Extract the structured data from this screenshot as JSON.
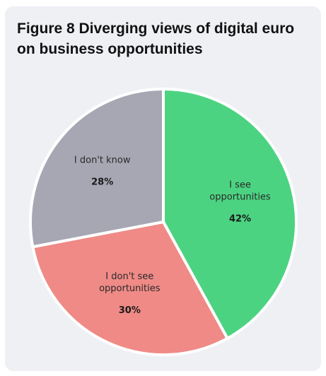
{
  "chart_data": {
    "type": "pie",
    "title": "Figure 8  Diverging views of digital euro on business opportunities",
    "slices": [
      {
        "label_lines": [
          "I see",
          "opportunities"
        ],
        "value": 42,
        "value_label": "42%",
        "color": "#4cd382"
      },
      {
        "label_lines": [
          "I don't see",
          "opportunities"
        ],
        "value": 30,
        "value_label": "30%",
        "color": "#ef8a86"
      },
      {
        "label_lines": [
          "I don't know"
        ],
        "value": 28,
        "value_label": "28%",
        "color": "#a6a7b3"
      }
    ],
    "start_angle_deg": 0,
    "direction": "clockwise",
    "legend": "none"
  }
}
